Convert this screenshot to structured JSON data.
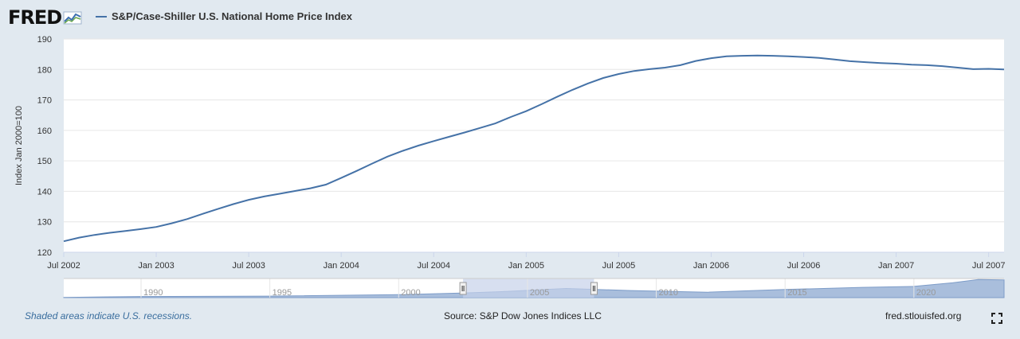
{
  "header": {
    "logo_text": "FRED",
    "legend_label": "S&P/Case-Shiller U.S. National Home Price Index"
  },
  "footer": {
    "recession_note": "Shaded areas indicate U.S. recessions.",
    "source": "Source: S&P Dow Jones Indices LLC",
    "site": "fred.stlouisfed.org"
  },
  "colors": {
    "line": "#4572a7",
    "navigator_fill": "#a9bedc",
    "navigator_selection": "#c6d1ea",
    "background": "#e1e9f0"
  },
  "chart_data": {
    "type": "line",
    "ylabel": "Index Jan 2000=100",
    "ylim": [
      120,
      190
    ],
    "yticks": [
      120,
      130,
      140,
      150,
      160,
      170,
      180,
      190
    ],
    "xlim": [
      "2002-07",
      "2007-08"
    ],
    "xticks": [
      "2002-07",
      "2003-01",
      "2003-07",
      "2004-01",
      "2004-07",
      "2005-01",
      "2005-07",
      "2006-01",
      "2006-07",
      "2007-01",
      "2007-07"
    ],
    "xtick_labels": [
      "Jul 2002",
      "Jan 2003",
      "Jul 2003",
      "Jan 2004",
      "Jul 2004",
      "Jan 2005",
      "Jul 2005",
      "Jan 2006",
      "Jul 2006",
      "Jan 2007",
      "Jul 2007"
    ],
    "grid": true,
    "series": [
      {
        "name": "S&P/Case-Shiller U.S. National Home Price Index",
        "x": [
          "2002-07",
          "2002-08",
          "2002-09",
          "2002-10",
          "2002-11",
          "2002-12",
          "2003-01",
          "2003-02",
          "2003-03",
          "2003-04",
          "2003-05",
          "2003-06",
          "2003-07",
          "2003-08",
          "2003-09",
          "2003-10",
          "2003-11",
          "2003-12",
          "2004-01",
          "2004-02",
          "2004-03",
          "2004-04",
          "2004-05",
          "2004-06",
          "2004-07",
          "2004-08",
          "2004-09",
          "2004-10",
          "2004-11",
          "2004-12",
          "2005-01",
          "2005-02",
          "2005-03",
          "2005-04",
          "2005-05",
          "2005-06",
          "2005-07",
          "2005-08",
          "2005-09",
          "2005-10",
          "2005-11",
          "2005-12",
          "2006-01",
          "2006-02",
          "2006-03",
          "2006-04",
          "2006-05",
          "2006-06",
          "2006-07",
          "2006-08",
          "2006-09",
          "2006-10",
          "2006-11",
          "2006-12",
          "2007-01",
          "2007-02",
          "2007-03",
          "2007-04",
          "2007-05",
          "2007-06",
          "2007-07",
          "2007-08"
        ],
        "values": [
          123.6,
          124.8,
          125.7,
          126.4,
          127.0,
          127.6,
          128.3,
          129.5,
          130.9,
          132.6,
          134.2,
          135.8,
          137.2,
          138.3,
          139.2,
          140.1,
          141.0,
          142.2,
          144.4,
          146.7,
          149.1,
          151.4,
          153.3,
          155.0,
          156.5,
          157.9,
          159.3,
          160.8,
          162.3,
          164.4,
          166.3,
          168.6,
          171.0,
          173.3,
          175.4,
          177.2,
          178.5,
          179.5,
          180.1,
          180.6,
          181.4,
          182.8,
          183.7,
          184.3,
          184.5,
          184.6,
          184.5,
          184.3,
          184.1,
          183.8,
          183.3,
          182.7,
          182.4,
          182.1,
          181.9,
          181.6,
          181.4,
          181.1,
          180.6,
          180.1,
          180.2,
          180.0
        ]
      }
    ],
    "navigator": {
      "x_labels": [
        "1990",
        "1995",
        "2000",
        "2005",
        "2010",
        "2015",
        "2020"
      ],
      "selection": [
        "2002-07",
        "2007-08"
      ]
    }
  }
}
